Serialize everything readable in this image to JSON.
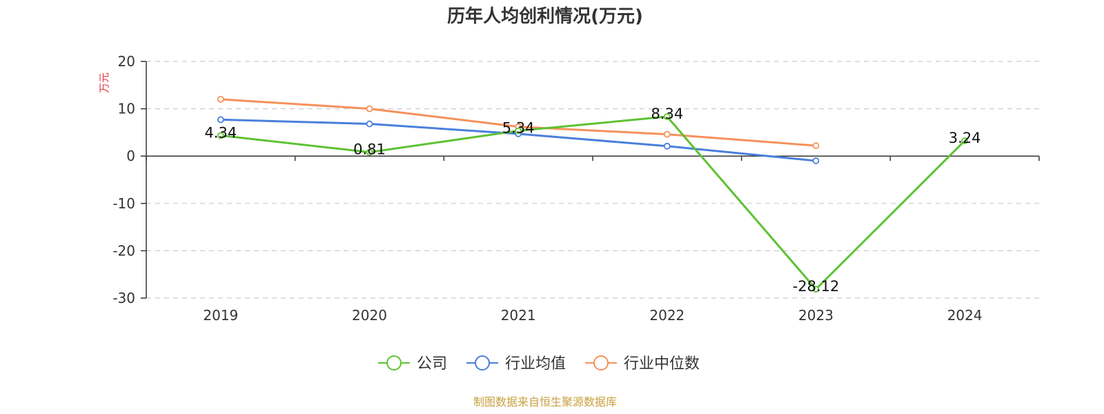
{
  "colors": {
    "unit_label": "#e8323c",
    "footer": "#c8a040",
    "axis": "#333333",
    "grid": "#cccccc"
  },
  "footer": {
    "source": "制图数据来自恒生聚源数据库"
  },
  "chart_data": {
    "type": "line",
    "title": "历年人均创利情况(万元)",
    "ylabel": "万元",
    "xlabel": "",
    "ylim": [
      -30,
      20
    ],
    "yticks": [
      20,
      10,
      0,
      -10,
      -20,
      -30
    ],
    "categories": [
      "2019",
      "2020",
      "2021",
      "2022",
      "2023",
      "2024"
    ],
    "grid": true,
    "legend_position": "bottom",
    "series": [
      {
        "name": "公司",
        "color": "#5dc232",
        "values": [
          4.34,
          0.81,
          5.34,
          8.34,
          -28.12,
          3.24
        ],
        "labels": [
          "4.34",
          "0.81",
          "5.34",
          "8.34",
          "-28.12",
          "3.24"
        ]
      },
      {
        "name": "行业均值",
        "color": "#4a7fdc",
        "values": [
          7.7,
          6.8,
          4.7,
          2.1,
          -1.0,
          null
        ]
      },
      {
        "name": "行业中位数",
        "color": "#f5915a",
        "values": [
          12.0,
          10.0,
          6.2,
          4.6,
          2.2,
          null
        ]
      }
    ]
  }
}
